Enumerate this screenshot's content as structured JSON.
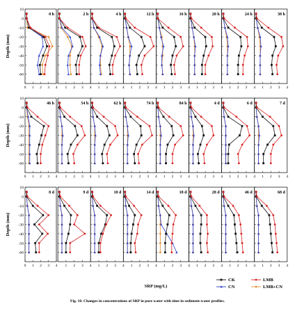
{
  "caption": "Fig. 10. Changes in concentrations of SRP in pore water with time in sediment-water profiles.",
  "chart_data": {
    "type": "line",
    "title": "",
    "xlabel": "SRP (mg/L)",
    "ylabel": "Depth (mm)",
    "xlim": [
      0,
      4
    ],
    "ylim": [
      10,
      -70
    ],
    "x_ticks": [
      0,
      1,
      2,
      3,
      4
    ],
    "y_ticks": [
      10,
      0,
      -10,
      -20,
      -30,
      -40,
      -50,
      -60
    ],
    "depths": [
      5,
      0,
      -10,
      -20,
      -30,
      -40,
      -50,
      -60
    ],
    "series_meta": [
      {
        "name": "CK",
        "color": "#111111",
        "marker": "square"
      },
      {
        "name": "LMB",
        "color": "#d62020",
        "marker": "circle"
      },
      {
        "name": "CN",
        "color": "#2a3fc8",
        "marker": "triangle"
      },
      {
        "name": "LMB+CN",
        "color": "#e08a2a",
        "marker": "diamond"
      }
    ],
    "legend": {
      "position": "bottom-right",
      "items": [
        "CK",
        "LMB",
        "CN",
        "LMB+CN"
      ]
    },
    "rows": [
      [
        {
          "label": "0 h",
          "CK": [
            0.2,
            0.2,
            0.5,
            2.4,
            2.8,
            2.3,
            1.9,
            2.0
          ],
          "LMB": [
            0.2,
            0.2,
            0.7,
            2.6,
            3.1,
            2.9,
            2.6,
            2.5
          ],
          "CN": [
            0.2,
            0.2,
            0.5,
            2.2,
            2.3,
            1.8,
            1.6,
            1.8
          ],
          "LMB+CN": [
            0.2,
            0.2,
            0.3,
            3.0,
            3.5,
            2.6,
            2.2,
            2.3
          ]
        },
        {
          "label": "2 h",
          "CK": [
            0.2,
            0.2,
            0.9,
            2.7,
            3.0,
            2.5,
            2.2,
            2.3
          ],
          "LMB": [
            0.2,
            0.2,
            1.2,
            3.0,
            3.4,
            2.8,
            2.6,
            2.6
          ],
          "CN": [
            0.2,
            0.2,
            0.5,
            1.5,
            1.8,
            1.3,
            1.2,
            1.3
          ],
          "LMB+CN": [
            0.2,
            0.2,
            0.4,
            1.2,
            1.7,
            1.5,
            1.5,
            1.6
          ]
        },
        {
          "label": "4 h",
          "CK": [
            0.2,
            0.2,
            0.8,
            2.6,
            2.9,
            2.6,
            2.3,
            2.4
          ],
          "LMB": [
            0.2,
            0.2,
            1.0,
            3.2,
            3.6,
            3.0,
            2.7,
            2.7
          ],
          "CN": [
            0.2,
            0.2,
            0.4,
            1.1,
            1.5,
            1.2,
            1.1,
            1.2
          ],
          "LMB+CN": [
            0.2,
            0.2,
            0.4,
            1.0,
            1.4,
            1.2,
            1.2,
            1.3
          ]
        },
        {
          "label": "12 h",
          "CK": [
            0.2,
            0.2,
            0.8,
            2.2,
            2.6,
            1.9,
            1.6,
            1.7
          ],
          "LMB": [
            0.2,
            0.3,
            1.4,
            3.3,
            3.7,
            2.6,
            2.2,
            2.3
          ],
          "CN": [
            0.2,
            0.2,
            0.4,
            0.6,
            1.0,
            0.8,
            0.7,
            0.8
          ],
          "LMB+CN": [
            0.2,
            0.2,
            0.4,
            0.6,
            0.8,
            0.8,
            0.7,
            0.8
          ]
        },
        {
          "label": "16 h",
          "CK": [
            0.2,
            0.2,
            0.8,
            2.2,
            2.4,
            2.0,
            1.8,
            1.9
          ],
          "LMB": [
            0.2,
            0.2,
            1.5,
            3.0,
            3.3,
            2.5,
            2.2,
            2.3
          ],
          "CN": [
            0.2,
            0.2,
            0.4,
            0.6,
            0.9,
            0.7,
            0.7,
            0.8
          ],
          "LMB+CN": [
            0.2,
            0.2,
            0.4,
            0.7,
            0.8,
            0.8,
            0.7,
            0.8
          ]
        },
        {
          "label": "20 h",
          "CK": [
            0.2,
            0.2,
            0.7,
            2.0,
            2.1,
            1.8,
            1.6,
            1.6
          ],
          "LMB": [
            0.2,
            0.3,
            1.5,
            2.8,
            2.9,
            2.4,
            2.0,
            2.0
          ],
          "CN": [
            0.2,
            0.2,
            0.4,
            0.6,
            0.8,
            0.7,
            0.7,
            0.7
          ],
          "LMB+CN": [
            0.2,
            0.2,
            0.4,
            0.6,
            0.7,
            0.7,
            0.7,
            0.7
          ]
        },
        {
          "label": "24 h",
          "CK": [
            0.2,
            0.2,
            0.8,
            2.3,
            2.4,
            2.1,
            2.0,
            2.0
          ],
          "LMB": [
            0.2,
            0.3,
            1.6,
            3.1,
            3.2,
            2.8,
            2.6,
            2.6
          ],
          "CN": [
            0.2,
            0.2,
            0.4,
            0.7,
            0.8,
            0.7,
            0.7,
            0.7
          ],
          "LMB+CN": [
            0.2,
            0.2,
            0.4,
            0.6,
            0.7,
            0.7,
            0.7,
            0.7
          ]
        },
        {
          "label": "38 h",
          "CK": [
            0.2,
            0.2,
            0.9,
            2.4,
            2.6,
            2.2,
            2.1,
            2.2
          ],
          "LMB": [
            0.2,
            0.3,
            1.7,
            3.3,
            3.5,
            2.9,
            2.7,
            2.8
          ],
          "CN": [
            0.2,
            0.2,
            0.4,
            0.7,
            0.8,
            0.7,
            0.7,
            0.7
          ],
          "LMB+CN": [
            0.2,
            0.2,
            0.4,
            0.6,
            0.7,
            0.7,
            0.7,
            0.7
          ]
        }
      ],
      [
        {
          "label": "46 h",
          "CK": [
            0.2,
            0.2,
            0.8,
            2.4,
            2.1,
            1.8,
            1.5,
            1.6
          ],
          "LMB": [
            0.2,
            0.3,
            1.6,
            3.0,
            2.6,
            2.2,
            2.0,
            2.0
          ],
          "CN": [
            0.2,
            0.2,
            0.4,
            0.6,
            0.6,
            0.6,
            0.6,
            0.6
          ],
          "LMB+CN": [
            0.2,
            0.2,
            0.3,
            0.5,
            0.5,
            0.5,
            0.5,
            0.5
          ]
        },
        {
          "label": "54 h",
          "CK": [
            0.2,
            0.2,
            0.8,
            2.1,
            2.4,
            1.6,
            1.2,
            1.3
          ],
          "LMB": [
            0.2,
            0.3,
            1.5,
            2.9,
            3.3,
            2.4,
            1.9,
            2.0
          ],
          "CN": [
            0.2,
            0.2,
            0.3,
            0.5,
            0.6,
            0.5,
            0.5,
            0.5
          ],
          "LMB+CN": [
            0.2,
            0.2,
            0.3,
            0.5,
            0.5,
            0.5,
            0.5,
            0.5
          ]
        },
        {
          "label": "62 h",
          "CK": [
            0.2,
            0.2,
            0.8,
            2.0,
            2.3,
            1.7,
            1.4,
            1.5
          ],
          "LMB": [
            0.2,
            0.3,
            1.6,
            3.0,
            3.3,
            2.4,
            2.0,
            2.1
          ],
          "CN": [
            0.2,
            0.2,
            0.3,
            0.5,
            0.6,
            0.5,
            0.5,
            0.5
          ],
          "LMB+CN": [
            0.2,
            0.2,
            0.3,
            0.5,
            0.5,
            0.5,
            0.5,
            0.5
          ]
        },
        {
          "label": "74 h",
          "CK": [
            0.2,
            0.2,
            0.9,
            2.1,
            2.2,
            1.6,
            1.3,
            1.4
          ],
          "LMB": [
            0.2,
            0.3,
            1.7,
            3.2,
            3.5,
            2.3,
            1.8,
            1.9
          ],
          "CN": [
            0.2,
            0.2,
            0.3,
            0.5,
            0.6,
            0.5,
            0.5,
            0.5
          ],
          "LMB+CN": [
            0.2,
            0.2,
            0.3,
            0.5,
            0.5,
            0.5,
            0.5,
            0.5
          ]
        },
        {
          "label": "84 h",
          "CK": [
            0.2,
            0.2,
            0.9,
            1.9,
            2.1,
            1.4,
            1.2,
            1.2
          ],
          "LMB": [
            0.2,
            0.3,
            1.6,
            3.0,
            3.3,
            2.3,
            2.0,
            2.0
          ],
          "CN": [
            0.2,
            0.2,
            0.3,
            0.5,
            0.6,
            0.5,
            0.5,
            0.5
          ],
          "LMB+CN": [
            0.2,
            0.2,
            0.3,
            0.5,
            0.5,
            0.5,
            0.5,
            0.5
          ]
        },
        {
          "label": "4 d",
          "CK": [
            0.2,
            0.2,
            0.8,
            1.6,
            1.8,
            1.4,
            1.1,
            1.2
          ],
          "LMB": [
            0.2,
            0.3,
            1.5,
            2.8,
            3.0,
            2.2,
            1.8,
            1.9
          ],
          "CN": [
            0.2,
            0.2,
            0.3,
            0.5,
            0.6,
            0.5,
            0.5,
            0.5
          ],
          "LMB+CN": [
            0.2,
            0.2,
            0.3,
            0.5,
            0.5,
            0.5,
            0.5,
            0.5
          ]
        },
        {
          "label": "6 d",
          "CK": [
            0.2,
            0.2,
            0.8,
            2.5,
            2.2,
            0.9,
            0.8,
            0.8
          ],
          "LMB": [
            0.2,
            0.3,
            1.8,
            3.1,
            3.4,
            2.5,
            2.0,
            2.1
          ],
          "CN": [
            0.2,
            0.2,
            0.3,
            0.5,
            0.5,
            0.5,
            0.5,
            0.5
          ],
          "LMB+CN": [
            0.2,
            0.2,
            0.3,
            0.5,
            0.5,
            0.5,
            0.5,
            0.5
          ]
        },
        {
          "label": "7 d",
          "CK": [
            0.2,
            0.2,
            1.0,
            2.3,
            2.5,
            1.6,
            1.1,
            1.1
          ],
          "LMB": [
            0.2,
            0.3,
            1.9,
            3.0,
            3.3,
            2.3,
            2.0,
            2.0
          ],
          "CN": [
            0.2,
            0.2,
            0.3,
            0.5,
            0.6,
            0.5,
            0.5,
            0.5
          ],
          "LMB+CN": [
            0.2,
            0.2,
            0.3,
            0.5,
            0.5,
            0.5,
            0.5,
            0.5
          ]
        }
      ],
      [
        {
          "label": "8 d",
          "CK": [
            0.2,
            0.2,
            1.0,
            2.3,
            1.2,
            2.2,
            1.3,
            1.4
          ],
          "LMB": [
            0.2,
            0.3,
            1.6,
            3.0,
            1.8,
            2.9,
            1.8,
            1.8
          ],
          "CN": [
            0.2,
            0.2,
            0.3,
            0.5,
            0.5,
            0.5,
            0.5,
            0.5
          ],
          "LMB+CN": [
            0.2,
            0.2,
            0.3,
            0.5,
            0.5,
            0.5,
            0.5,
            0.5
          ]
        },
        {
          "label": "9 d",
          "CK": [
            0.2,
            0.2,
            0.8,
            1.6,
            1.5,
            1.3,
            1.0,
            1.0
          ],
          "LMB": [
            0.2,
            0.3,
            1.4,
            2.4,
            2.0,
            3.3,
            1.5,
            1.5
          ],
          "CN": [
            0.2,
            0.2,
            0.3,
            0.5,
            0.5,
            0.5,
            0.5,
            0.5
          ],
          "LMB+CN": [
            0.2,
            0.2,
            0.3,
            0.5,
            0.5,
            0.5,
            0.5,
            0.5
          ]
        },
        {
          "label": "10 d",
          "CK": [
            0.2,
            0.2,
            0.8,
            2.0,
            1.8,
            1.3,
            1.0,
            1.0
          ],
          "LMB": [
            0.2,
            0.3,
            1.2,
            2.5,
            1.9,
            1.5,
            1.2,
            1.2
          ],
          "CN": [
            0.2,
            0.2,
            0.3,
            0.5,
            0.5,
            0.5,
            0.5,
            0.5
          ],
          "LMB+CN": [
            0.2,
            0.2,
            0.3,
            0.5,
            0.5,
            0.5,
            0.5,
            0.5
          ]
        },
        {
          "label": "14 d",
          "CK": [
            0.2,
            0.2,
            0.7,
            1.4,
            1.2,
            1.0,
            0.9,
            0.9
          ],
          "LMB": [
            0.2,
            0.3,
            1.3,
            2.2,
            1.8,
            1.7,
            1.4,
            1.5
          ],
          "CN": [
            0.2,
            0.2,
            0.3,
            0.5,
            0.5,
            0.5,
            0.5,
            0.5
          ],
          "LMB+CN": [
            0.2,
            0.2,
            0.3,
            0.5,
            0.5,
            0.5,
            0.5,
            0.5
          ]
        },
        {
          "label": "18 d",
          "CK": [
            0.2,
            0.2,
            0.8,
            1.6,
            1.4,
            1.2,
            1.1,
            1.1
          ],
          "LMB": [
            0.2,
            0.3,
            1.5,
            2.4,
            2.1,
            2.0,
            1.9,
            1.9
          ],
          "CN": [
            0.2,
            0.2,
            0.3,
            0.5,
            0.6,
            1.3,
            2.0,
            2.5
          ],
          "LMB+CN": [
            0.2,
            0.2,
            0.3,
            0.5,
            0.5,
            0.5,
            0.5,
            0.5
          ]
        },
        {
          "label": "28 d",
          "CK": [
            0.2,
            0.2,
            0.8,
            1.5,
            1.5,
            1.4,
            1.4,
            1.5
          ],
          "LMB": [
            0.2,
            0.3,
            1.3,
            2.2,
            2.2,
            2.3,
            2.2,
            2.3
          ],
          "CN": [
            0.2,
            0.2,
            0.3,
            0.5,
            0.5,
            0.5,
            0.5,
            0.5
          ],
          "LMB+CN": [
            0.2,
            0.2,
            0.3,
            0.5,
            0.5,
            0.5,
            0.5,
            0.5
          ]
        },
        {
          "label": "46 d",
          "CK": [
            0.2,
            0.2,
            0.8,
            1.5,
            1.6,
            1.7,
            1.8,
            1.9
          ],
          "LMB": [
            0.2,
            0.3,
            1.4,
            2.1,
            2.3,
            2.4,
            2.5,
            2.6
          ],
          "CN": [
            0.2,
            0.2,
            0.3,
            0.5,
            0.5,
            0.5,
            0.5,
            0.5
          ],
          "LMB+CN": [
            0.2,
            0.2,
            0.3,
            0.5,
            0.5,
            0.5,
            0.5,
            0.5
          ]
        },
        {
          "label": "68 d",
          "CK": [
            0.2,
            0.2,
            0.9,
            1.8,
            1.9,
            2.0,
            2.1,
            2.2
          ],
          "LMB": [
            0.2,
            0.3,
            1.5,
            2.3,
            2.5,
            2.6,
            2.7,
            2.8
          ],
          "CN": [
            0.2,
            0.2,
            0.3,
            0.5,
            0.5,
            0.5,
            0.5,
            0.5
          ],
          "LMB+CN": [
            0.2,
            0.2,
            0.3,
            0.5,
            0.5,
            0.5,
            0.5,
            0.5
          ]
        }
      ]
    ]
  }
}
